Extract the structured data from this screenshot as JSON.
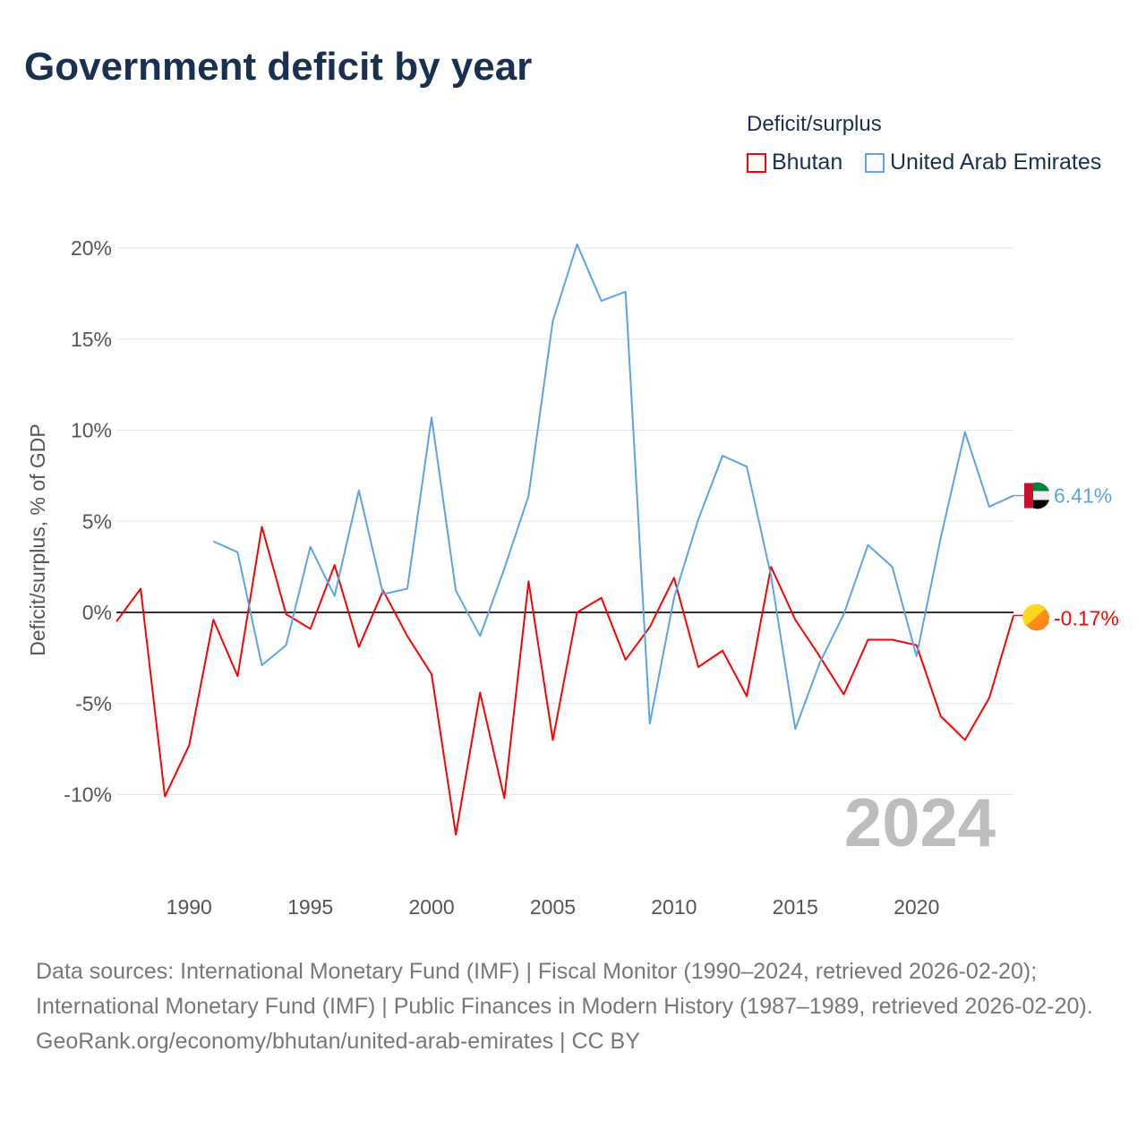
{
  "title": "Government deficit by year",
  "legend": {
    "title": "Deficit/surplus",
    "items": [
      "Bhutan",
      "United Arab Emirates"
    ]
  },
  "sources": {
    "line1": "Data sources: International Monetary Fund (IMF) | Fiscal Monitor (1990–2024, retrieved 2026-02-20); International Monetary Fund (IMF) | Public Finances in Modern History (1987–1989, retrieved 2026-02-20).",
    "line2": "GeoRank.org/economy/bhutan/united-arab-emirates | CC BY"
  },
  "chart_data": {
    "type": "line",
    "title": "Government deficit by year",
    "ylabel": "Deficit/surplus, % of GDP",
    "xlabel": "",
    "xlim": [
      1987,
      2024
    ],
    "ylim": [
      -14,
      22
    ],
    "xticks": [
      1990,
      1995,
      2000,
      2005,
      2010,
      2015,
      2020
    ],
    "xtick_labels": [
      "1990",
      "1995",
      "2000",
      "2005",
      "2010",
      "2015",
      "2020"
    ],
    "yticks": [
      -10,
      -5,
      0,
      5,
      10,
      15,
      20
    ],
    "ytick_labels": [
      "-10%",
      "-5%",
      "0%",
      "5%",
      "10%",
      "15%",
      "20%"
    ],
    "watermark_year": "2024",
    "grid": true,
    "legend_position": "top-right",
    "series": [
      {
        "name": "Bhutan",
        "color": "#ff0000",
        "end_label": "-0.17%",
        "x": [
          1987,
          1988,
          1989,
          1990,
          1991,
          1992,
          1993,
          1994,
          1995,
          1996,
          1997,
          1998,
          1999,
          2000,
          2001,
          2002,
          2003,
          2004,
          2005,
          2006,
          2007,
          2008,
          2009,
          2010,
          2011,
          2012,
          2013,
          2014,
          2015,
          2016,
          2017,
          2018,
          2019,
          2020,
          2021,
          2022,
          2023,
          2024
        ],
        "values": [
          -0.5,
          1.3,
          -10.1,
          -7.3,
          -0.4,
          -3.5,
          4.7,
          -0.1,
          -0.9,
          2.6,
          -1.9,
          1.2,
          -1.3,
          -3.4,
          -12.2,
          -4.4,
          -10.2,
          1.7,
          -7.0,
          0.0,
          0.8,
          -2.6,
          -0.8,
          1.9,
          -3.0,
          -2.1,
          -4.6,
          2.5,
          -0.4,
          -2.4,
          -4.5,
          -1.5,
          -1.5,
          -1.8,
          -5.7,
          -7.0,
          -4.7,
          -0.17
        ]
      },
      {
        "name": "United Arab Emirates",
        "color": "#5ba4e8",
        "end_label": "6.41%",
        "x": [
          1991,
          1992,
          1993,
          1994,
          1995,
          1996,
          1997,
          1998,
          1999,
          2000,
          2001,
          2002,
          2003,
          2004,
          2005,
          2006,
          2007,
          2008,
          2009,
          2010,
          2011,
          2012,
          2013,
          2014,
          2015,
          2016,
          2017,
          2018,
          2019,
          2020,
          2021,
          2022,
          2023,
          2024
        ],
        "values": [
          3.9,
          3.3,
          -2.9,
          -1.8,
          3.6,
          0.9,
          6.7,
          1.0,
          1.3,
          10.7,
          1.2,
          -1.3,
          2.4,
          6.4,
          16.0,
          20.2,
          17.1,
          17.6,
          -6.1,
          0.8,
          5.1,
          8.6,
          8.0,
          2.0,
          -6.4,
          -2.8,
          -0.1,
          3.7,
          2.5,
          -2.4,
          4.1,
          9.9,
          5.8,
          6.41
        ]
      }
    ]
  }
}
